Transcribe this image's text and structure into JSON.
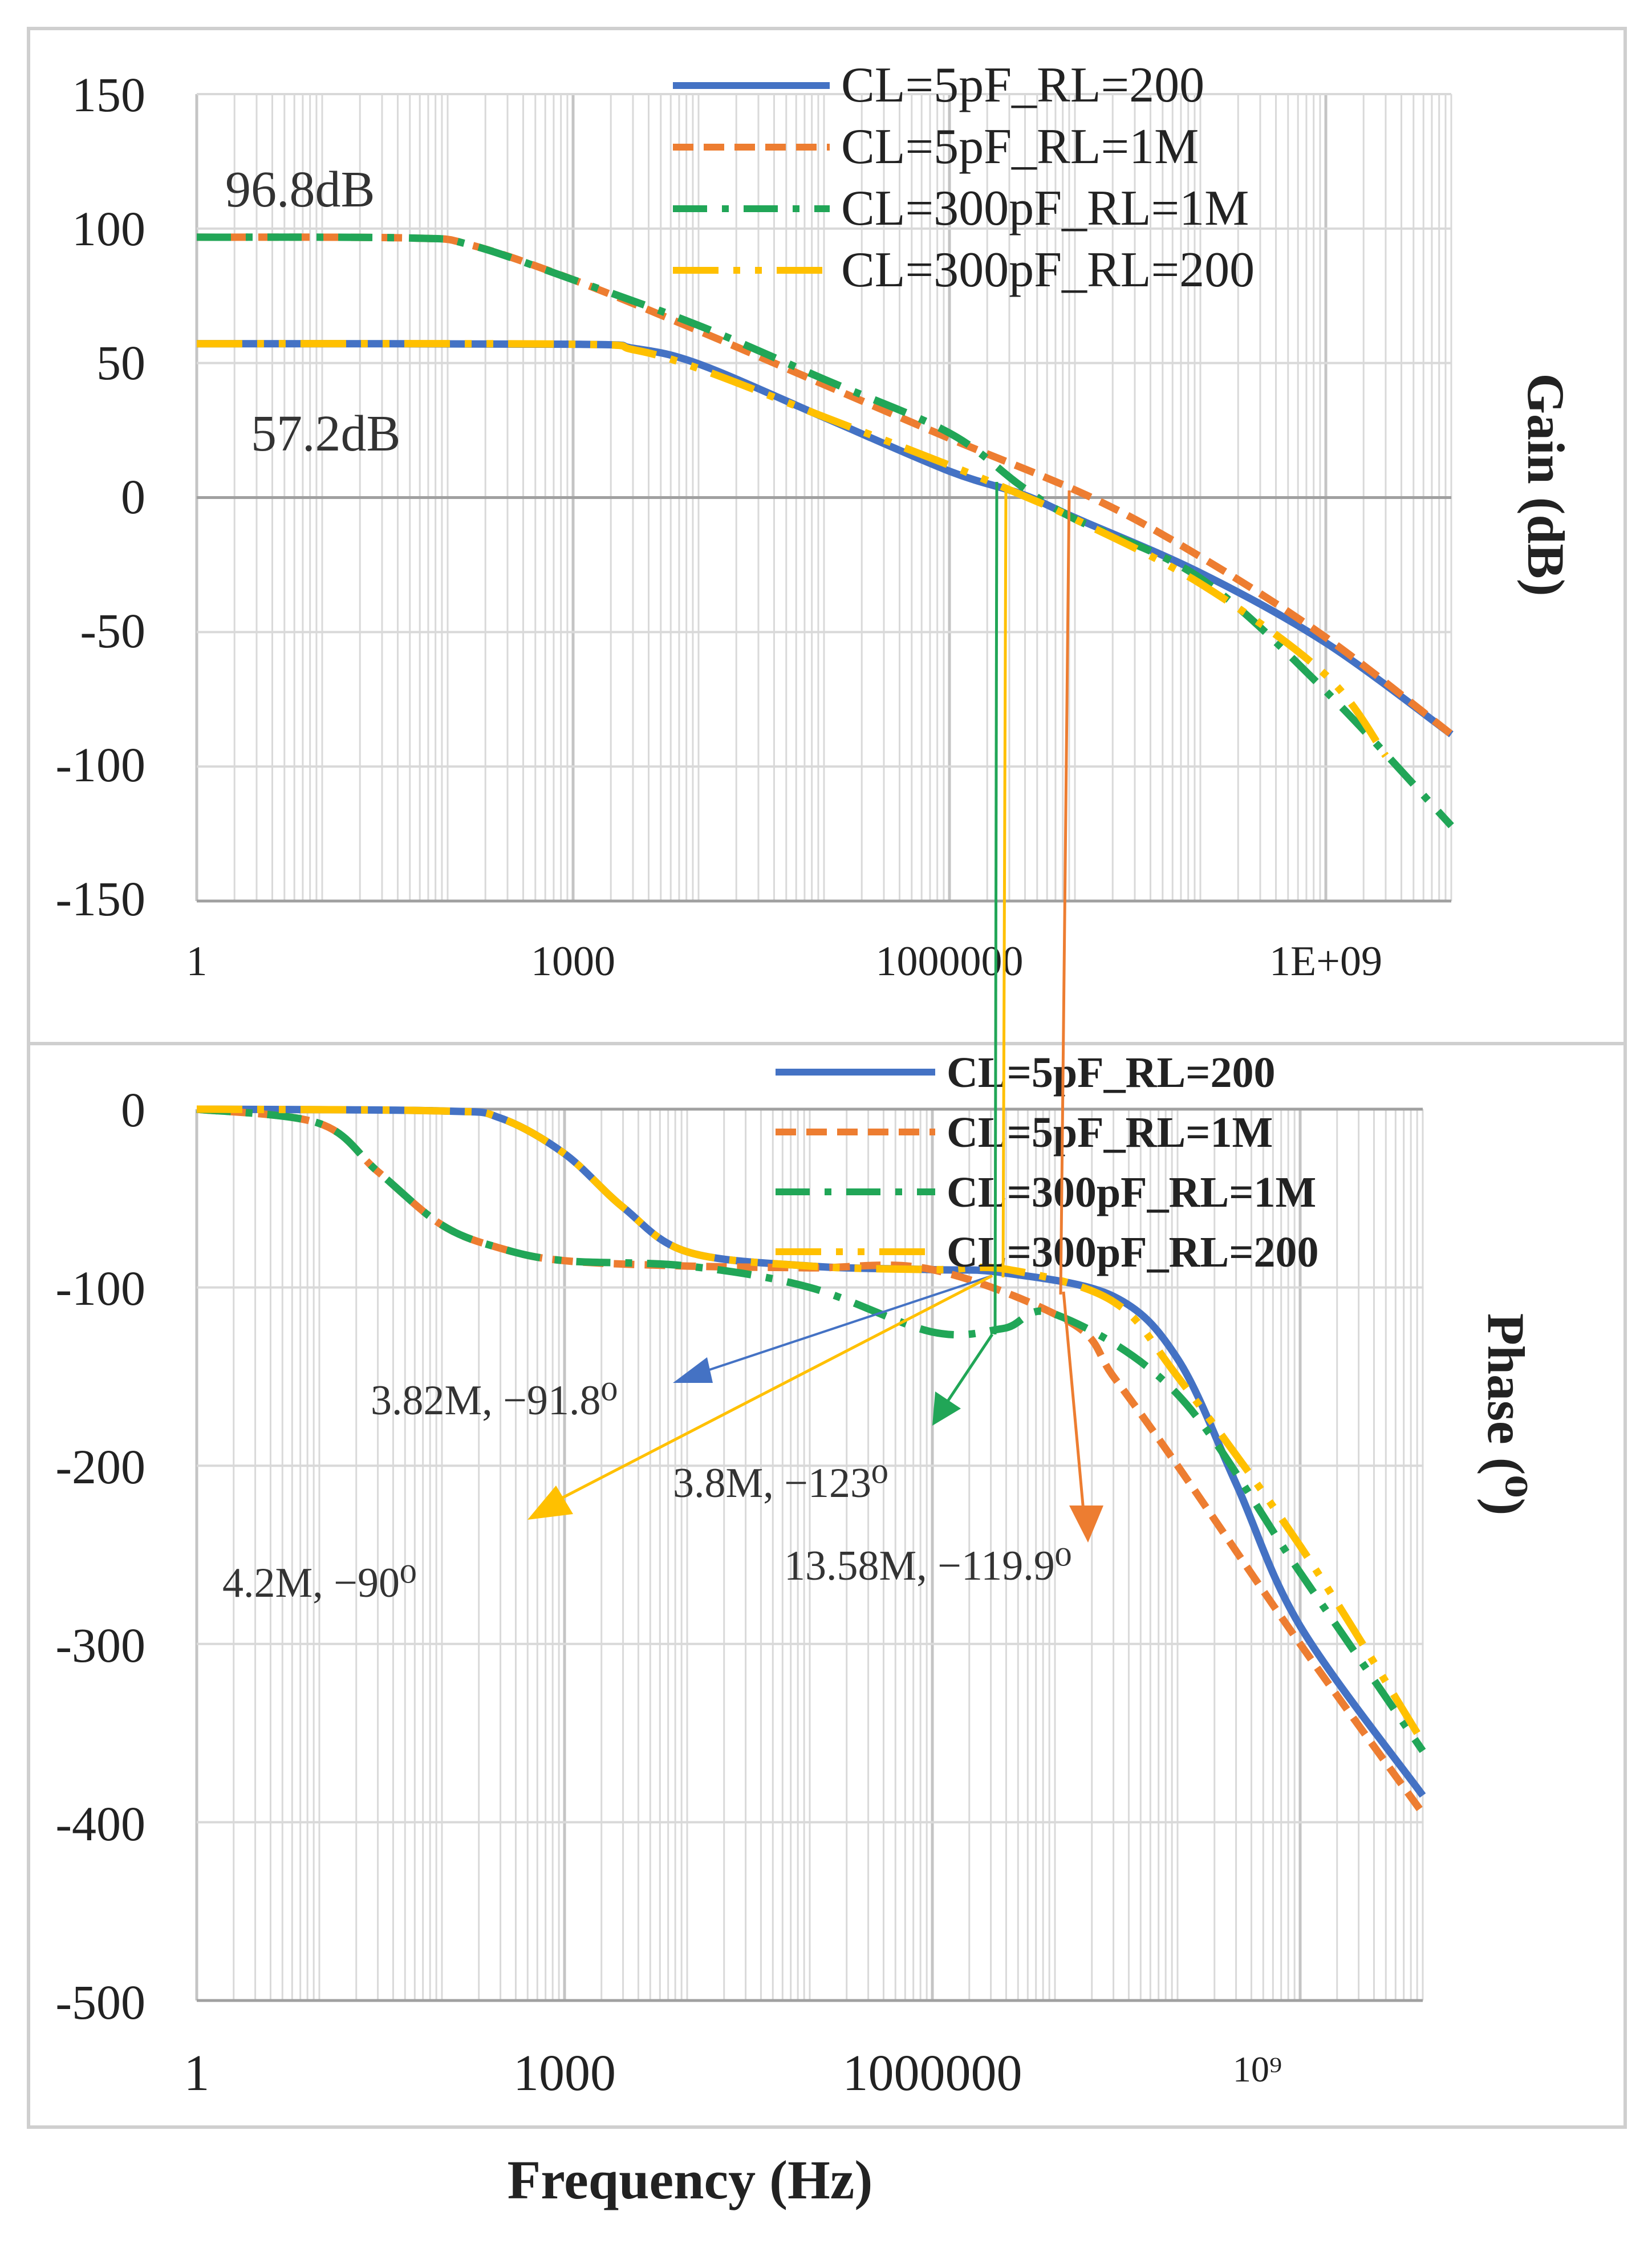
{
  "colors": {
    "series": [
      "#4472C4",
      "#ED7D31",
      "#21A657",
      "#FFC000"
    ],
    "frame": "#cfcfcf",
    "grid": "#d9d9d9",
    "axis": "#a0a0a0"
  },
  "xlabel": "Frequency (Hz)",
  "chart_data": [
    {
      "type": "line",
      "title": "",
      "ylabel": "Gain (dB)",
      "xscale": "log",
      "xlim": [
        1,
        10000000000
      ],
      "ylim": [
        -150,
        150
      ],
      "xtick_labels": [
        "1",
        "1000",
        "1000000",
        "1E+09"
      ],
      "ytick_labels": [
        "150",
        "100",
        "50",
        "0",
        "-50",
        "-100",
        "-150"
      ],
      "legend": [
        "CL=5pF_RL=200",
        "CL=5pF_RL=1M",
        "CL=300pF_RL=1M",
        "CL=300pF_RL=200"
      ],
      "legend_position": "top-right",
      "annotations": [
        "96.8dB",
        "57.2dB"
      ],
      "series": [
        {
          "name": "CL=5pF_RL=200",
          "dc_gain_db": 57.2,
          "x": [
            1,
            1000,
            3000,
            10000,
            100000,
            1000000,
            3820000,
            10000000,
            100000000,
            1000000000,
            10000000000
          ],
          "y": [
            57.2,
            57.0,
            55.5,
            49.7,
            29.8,
            9.8,
            1.2,
            -7.5,
            -28.0,
            -54.0,
            -88.0
          ]
        },
        {
          "name": "CL=5pF_RL=1M",
          "dc_gain_db": 96.8,
          "x": [
            1,
            50,
            150,
            1000,
            10000,
            100000,
            1000000,
            13580000,
            100000000,
            1000000000,
            10000000000
          ],
          "y": [
            96.8,
            96.5,
            94.0,
            81.0,
            62.0,
            42.0,
            22.0,
            0.0,
            -22.0,
            -52.0,
            -88.0
          ]
        },
        {
          "name": "CL=300pF_RL=1M",
          "dc_gain_db": 96.8,
          "x": [
            1,
            50,
            150,
            1000,
            10000,
            100000,
            1000000,
            3800000,
            10000000,
            100000000,
            1000000000,
            10000000000
          ],
          "y": [
            96.8,
            96.5,
            94.0,
            81.0,
            64.0,
            44.0,
            24.0,
            4.0,
            -8.0,
            -30.0,
            -72.0,
            -122.0
          ]
        },
        {
          "name": "CL=300pF_RL=200",
          "dc_gain_db": 57.2,
          "x": [
            1,
            1000,
            3000,
            10000,
            100000,
            1000000,
            4200000,
            10000000,
            100000000,
            1000000000,
            3000000000
          ],
          "y": [
            57.2,
            57.0,
            55.0,
            48.0,
            30.0,
            12.0,
            0.0,
            -8.0,
            -32.0,
            -66.0,
            -96.0
          ]
        }
      ]
    },
    {
      "type": "line",
      "title": "",
      "ylabel": "Phase (⁰)",
      "xscale": "log",
      "xlim": [
        1,
        10000000000
      ],
      "ylim": [
        -500,
        0
      ],
      "xtick_labels": [
        "1",
        "1000",
        "1000000",
        "10⁹"
      ],
      "ytick_labels": [
        "0",
        "-100",
        "-200",
        "-300",
        "-400",
        "-500"
      ],
      "legend": [
        "CL=5pF_RL=200",
        "CL=5pF_RL=1M",
        "CL=300pF_RL=1M",
        "CL=300pF_RL=200"
      ],
      "legend_position": "top-right",
      "annotations": [
        "3.82M, −91.8⁰",
        "3.8M, −123⁰",
        "13.58M, −119.9⁰",
        "4.2M, −90⁰"
      ],
      "series": [
        {
          "name": "CL=5pF_RL=200",
          "x": [
            1,
            100,
            300,
            1000,
            3000,
            10000,
            100000,
            1000000,
            3820000,
            30000000,
            100000000,
            300000000,
            1000000000,
            10000000000
          ],
          "y": [
            0,
            -1,
            -5,
            -25,
            -55,
            -80,
            -88,
            -90,
            -91.8,
            -105,
            -140,
            -210,
            -290,
            -385
          ]
        },
        {
          "name": "CL=5pF_RL=1M",
          "x": [
            1,
            10,
            30,
            100,
            300,
            1000,
            10000,
            100000,
            1000000,
            13580000,
            30000000,
            100000000,
            1000000000,
            10000000000
          ],
          "y": [
            0,
            -8,
            -35,
            -65,
            -78,
            -85,
            -88,
            -89,
            -90,
            -119.9,
            -150,
            -200,
            -300,
            -395
          ]
        },
        {
          "name": "CL=300pF_RL=1M",
          "x": [
            1,
            10,
            30,
            100,
            300,
            1000,
            10000,
            100000,
            1000000,
            3800000,
            10000000,
            100000000,
            1000000000,
            10000000000
          ],
          "y": [
            0,
            -8,
            -35,
            -65,
            -78,
            -85,
            -88,
            -100,
            -125,
            -123,
            -115,
            -160,
            -260,
            -360
          ]
        },
        {
          "name": "CL=300pF_RL=200",
          "x": [
            1,
            100,
            300,
            1000,
            3000,
            10000,
            100000,
            1000000,
            4200000,
            30000000,
            100000000,
            1000000000,
            10000000000
          ],
          "y": [
            0,
            -1,
            -5,
            -25,
            -55,
            -80,
            -88,
            -90,
            -90,
            -108,
            -150,
            -245,
            -355
          ]
        }
      ]
    }
  ]
}
